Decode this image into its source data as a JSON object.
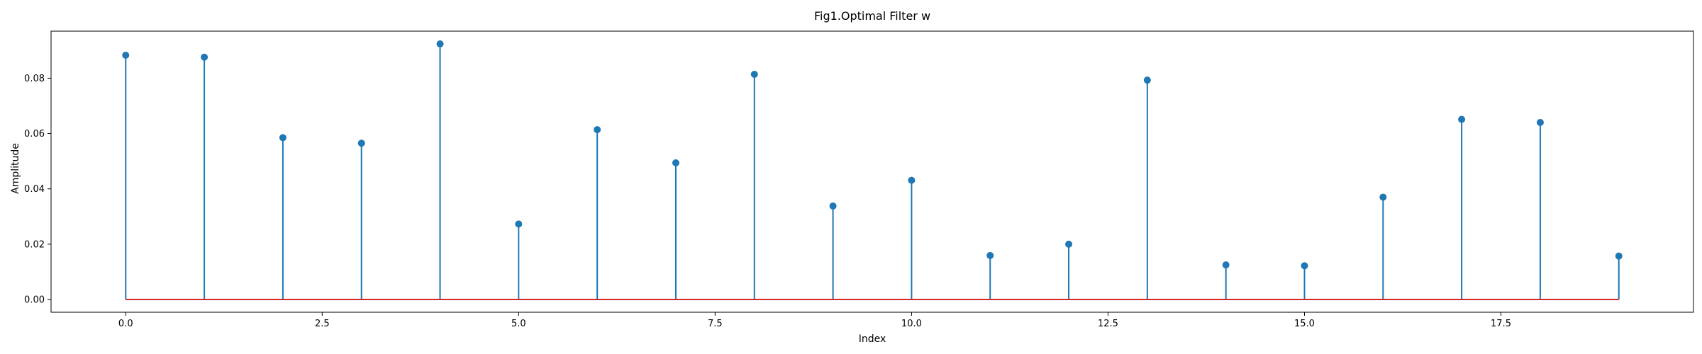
{
  "chart_data": {
    "type": "stem",
    "title": "Fig1.Optimal Filter w",
    "xlabel": "Index",
    "ylabel": "Amplitude",
    "x": [
      0,
      1,
      2,
      3,
      4,
      5,
      6,
      7,
      8,
      9,
      10,
      11,
      12,
      13,
      14,
      15,
      16,
      17,
      18,
      19
    ],
    "values": [
      0.0883,
      0.0876,
      0.0585,
      0.0565,
      0.0924,
      0.0273,
      0.0614,
      0.0494,
      0.0814,
      0.0338,
      0.0431,
      0.0159,
      0.02,
      0.0793,
      0.0125,
      0.0122,
      0.037,
      0.0651,
      0.064,
      0.0157
    ],
    "xlim": [
      -0.95,
      19.95
    ],
    "ylim": [
      -0.0046,
      0.097
    ],
    "xticks": [
      0.0,
      2.5,
      5.0,
      7.5,
      10.0,
      12.5,
      15.0,
      17.5
    ],
    "xtick_labels": [
      "0.0",
      "2.5",
      "5.0",
      "7.5",
      "10.0",
      "12.5",
      "15.0",
      "17.5"
    ],
    "yticks": [
      0.0,
      0.02,
      0.04,
      0.06,
      0.08
    ],
    "ytick_labels": [
      "0.00",
      "0.02",
      "0.04",
      "0.06",
      "0.08"
    ],
    "baseline": 0,
    "grid": false,
    "colors": {
      "stem": "#1f77b4",
      "marker": "#1f77b4",
      "baseline": "#d62728"
    }
  }
}
